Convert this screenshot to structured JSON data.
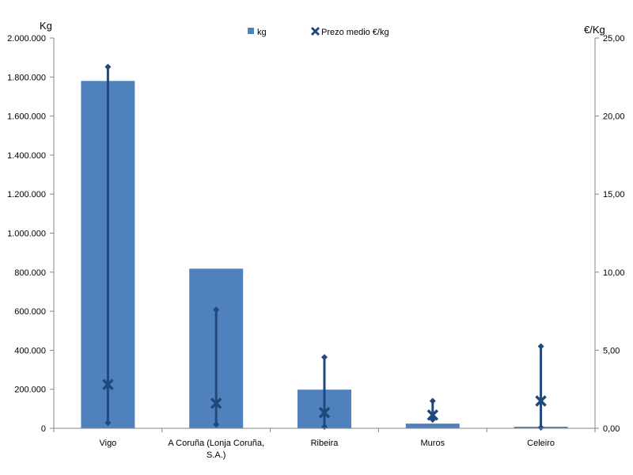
{
  "chart_data": {
    "type": "bar",
    "categories": [
      "Vigo",
      "A Coruña (Lonja Coruña, S.A.)",
      "Ribeira",
      "Muros",
      "Celeiro"
    ],
    "category_lines": [
      [
        "Vigo"
      ],
      [
        "A Coruña (Lonja Coruña,",
        "S.A.)"
      ],
      [
        "Ribeira"
      ],
      [
        "Muros"
      ],
      [
        "Celeiro"
      ]
    ],
    "series": [
      {
        "name": "kg",
        "axis": "left",
        "kind": "bar",
        "color": "#4f81bd",
        "values": [
          1780000,
          818000,
          198000,
          24000,
          8000
        ]
      },
      {
        "name": "Prezo medio €/kg",
        "axis": "right",
        "kind": "marker",
        "marker": "x",
        "color": "#1f497d",
        "values": [
          2.8,
          1.6,
          1.0,
          0.85,
          1.75
        ],
        "max": [
          23.15,
          7.6,
          4.55,
          1.75,
          5.25
        ],
        "min": [
          0.35,
          0.25,
          0.1,
          0.55,
          0.05
        ]
      }
    ],
    "left_axis": {
      "label": "Kg",
      "min": 0,
      "max": 2000000,
      "step": 200000,
      "ticks": [
        "0",
        "200.000",
        "400.000",
        "600.000",
        "800.000",
        "1.000.000",
        "1.200.000",
        "1.400.000",
        "1.600.000",
        "1.800.000",
        "2.000.000"
      ]
    },
    "right_axis": {
      "label": "€/Kg",
      "min": 0,
      "max": 25,
      "step": 5,
      "ticks": [
        "0,00",
        "5,00",
        "10,00",
        "15,00",
        "20,00",
        "25,00"
      ]
    },
    "legend_position": "top-center",
    "grid": false
  }
}
